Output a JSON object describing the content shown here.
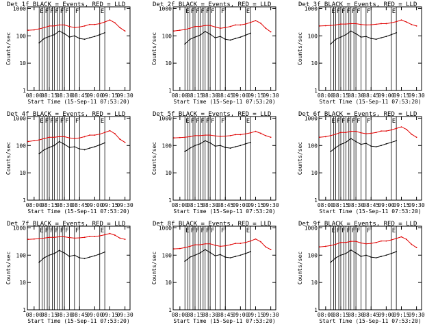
{
  "chart_data": [
    {
      "type": "line",
      "title": "Det 1f BLACK = Events, RED = LLD",
      "xlabel": "Start Time (15-Sep-11 07:53:20)",
      "ylabel": "Counts/sec",
      "x_tick_labels": [
        "08:00",
        "08:15",
        "08:30",
        "08:45",
        "09:00",
        "09:15",
        "09:30"
      ],
      "y_tick_labels": [
        "1",
        "10",
        "100",
        "1000"
      ],
      "y_scale": "log",
      "ylim": [
        1,
        1000
      ],
      "flag_letters": [
        "E",
        "F",
        "F",
        "F",
        "F",
        "F",
        "F",
        "E"
      ],
      "series": [
        {
          "name": "Events",
          "color": "#000000",
          "x": [
            "08:05",
            "08:10",
            "08:15",
            "08:20",
            "08:25",
            "08:30",
            "08:35",
            "08:40",
            "08:45",
            "08:50",
            "08:55",
            "09:00",
            "09:05",
            "09:10"
          ],
          "values": [
            55,
            80,
            95,
            110,
            150,
            120,
            90,
            100,
            80,
            75,
            85,
            95,
            110,
            130
          ]
        },
        {
          "name": "LLD",
          "color": "#e00000",
          "x": [
            "07:54",
            "08:00",
            "08:05",
            "08:10",
            "08:15",
            "08:20",
            "08:25",
            "08:30",
            "08:35",
            "08:40",
            "08:45",
            "08:50",
            "08:55",
            "09:00",
            "09:05",
            "09:10",
            "09:15",
            "09:20",
            "09:25",
            "09:30"
          ],
          "values": [
            160,
            165,
            180,
            200,
            230,
            230,
            250,
            250,
            220,
            200,
            210,
            230,
            260,
            260,
            280,
            320,
            380,
            300,
            200,
            150
          ]
        }
      ]
    },
    {
      "type": "line",
      "title": "Det 2f BLACK = Events, RED = LLD",
      "xlabel": "Start Time (15-Sep-11 07:53:20)",
      "ylabel": "Counts/sec",
      "x_tick_labels": [
        "08:00",
        "08:15",
        "08:30",
        "08:45",
        "09:00",
        "09:15",
        "09:30"
      ],
      "y_tick_labels": [
        "1",
        "10",
        "100",
        "1000"
      ],
      "y_scale": "log",
      "ylim": [
        1,
        1000
      ],
      "flag_letters": [
        "E",
        "F",
        "F",
        "F",
        "F",
        "F",
        "F",
        "E"
      ],
      "series": [
        {
          "name": "Events",
          "color": "#000000",
          "x": [
            "08:05",
            "08:10",
            "08:15",
            "08:20",
            "08:25",
            "08:30",
            "08:35",
            "08:40",
            "08:45",
            "08:50",
            "08:55",
            "09:00",
            "09:05",
            "09:10"
          ],
          "values": [
            50,
            75,
            90,
            105,
            145,
            115,
            85,
            95,
            75,
            70,
            80,
            90,
            105,
            125
          ]
        },
        {
          "name": "LLD",
          "color": "#e00000",
          "x": [
            "07:54",
            "08:00",
            "08:05",
            "08:10",
            "08:15",
            "08:20",
            "08:25",
            "08:30",
            "08:35",
            "08:40",
            "08:45",
            "08:50",
            "08:55",
            "09:00",
            "09:05",
            "09:10",
            "09:15",
            "09:20",
            "09:25",
            "09:30"
          ],
          "values": [
            150,
            160,
            170,
            190,
            220,
            220,
            240,
            240,
            210,
            190,
            200,
            220,
            250,
            250,
            270,
            310,
            360,
            290,
            190,
            140
          ]
        }
      ]
    },
    {
      "type": "line",
      "title": "Det 3f BLACK = Events, RED = LLD",
      "xlabel": "Start Time (15-Sep-11 07:53:20)",
      "ylabel": "Counts/sec",
      "x_tick_labels": [
        "08:00",
        "08:15",
        "08:30",
        "08:45",
        "09:00",
        "09:15",
        "09:30"
      ],
      "y_tick_labels": [
        "1",
        "10",
        "100",
        "1000"
      ],
      "y_scale": "log",
      "ylim": [
        1,
        1000
      ],
      "flag_letters": [
        "E",
        "F",
        "F",
        "F",
        "F",
        "F",
        "F",
        "E"
      ],
      "series": [
        {
          "name": "Events",
          "color": "#000000",
          "x": [
            "08:05",
            "08:10",
            "08:15",
            "08:20",
            "08:25",
            "08:30",
            "08:35",
            "08:40",
            "08:45",
            "08:50",
            "08:55",
            "09:00",
            "09:05",
            "09:10"
          ],
          "values": [
            50,
            75,
            90,
            110,
            150,
            120,
            90,
            95,
            80,
            75,
            85,
            95,
            110,
            130
          ]
        },
        {
          "name": "LLD",
          "color": "#e00000",
          "x": [
            "07:54",
            "08:00",
            "08:05",
            "08:10",
            "08:15",
            "08:20",
            "08:25",
            "08:30",
            "08:35",
            "08:40",
            "08:45",
            "08:50",
            "08:55",
            "09:00",
            "09:05",
            "09:10",
            "09:15",
            "09:20",
            "09:25",
            "09:30"
          ],
          "values": [
            230,
            235,
            240,
            250,
            270,
            270,
            280,
            280,
            260,
            250,
            255,
            265,
            280,
            280,
            300,
            330,
            380,
            320,
            260,
            230
          ]
        }
      ]
    },
    {
      "type": "line",
      "title": "Det 4f BLACK = Events, RED = LLD",
      "xlabel": "Start Time (15-Sep-11 07:53:20)",
      "ylabel": "Counts/sec",
      "x_tick_labels": [
        "08:00",
        "08:15",
        "08:30",
        "08:45",
        "09:00",
        "09:15",
        "09:30"
      ],
      "y_tick_labels": [
        "1",
        "10",
        "100",
        "1000"
      ],
      "y_scale": "log",
      "ylim": [
        1,
        1000
      ],
      "flag_letters": [
        "E",
        "F",
        "F",
        "F",
        "F",
        "F",
        "F",
        "E"
      ],
      "series": [
        {
          "name": "Events",
          "color": "#000000",
          "x": [
            "08:05",
            "08:10",
            "08:15",
            "08:20",
            "08:25",
            "08:30",
            "08:35",
            "08:40",
            "08:45",
            "08:50",
            "08:55",
            "09:00",
            "09:05",
            "09:10"
          ],
          "values": [
            50,
            70,
            85,
            100,
            140,
            110,
            85,
            90,
            75,
            70,
            80,
            90,
            105,
            125
          ]
        },
        {
          "name": "LLD",
          "color": "#e00000",
          "x": [
            "07:54",
            "08:00",
            "08:05",
            "08:10",
            "08:15",
            "08:20",
            "08:25",
            "08:30",
            "08:35",
            "08:40",
            "08:45",
            "08:50",
            "08:55",
            "09:00",
            "09:05",
            "09:10",
            "09:15",
            "09:20",
            "09:25",
            "09:30"
          ],
          "values": [
            140,
            150,
            160,
            180,
            200,
            200,
            210,
            210,
            190,
            180,
            190,
            210,
            240,
            240,
            260,
            300,
            350,
            270,
            170,
            130
          ]
        }
      ]
    },
    {
      "type": "line",
      "title": "Det 5f BLACK = Events, RED = LLD",
      "xlabel": "Start Time (15-Sep-11 07:53:20)",
      "ylabel": "Counts/sec",
      "x_tick_labels": [
        "08:00",
        "08:15",
        "08:30",
        "08:45",
        "09:00",
        "09:15",
        "09:30"
      ],
      "y_tick_labels": [
        "1",
        "10",
        "100",
        "1000"
      ],
      "y_scale": "log",
      "ylim": [
        1,
        1000
      ],
      "flag_letters": [
        "E",
        "F",
        "F",
        "F",
        "F",
        "F",
        "F",
        "E"
      ],
      "series": [
        {
          "name": "Events",
          "color": "#000000",
          "x": [
            "08:05",
            "08:10",
            "08:15",
            "08:20",
            "08:25",
            "08:30",
            "08:35",
            "08:40",
            "08:45",
            "08:50",
            "08:55",
            "09:00",
            "09:05",
            "09:10"
          ],
          "values": [
            60,
            80,
            100,
            115,
            150,
            125,
            95,
            100,
            85,
            80,
            90,
            100,
            115,
            130
          ]
        },
        {
          "name": "LLD",
          "color": "#e00000",
          "x": [
            "07:54",
            "08:00",
            "08:05",
            "08:10",
            "08:15",
            "08:20",
            "08:25",
            "08:30",
            "08:35",
            "08:40",
            "08:45",
            "08:50",
            "08:55",
            "09:00",
            "09:05",
            "09:10",
            "09:15",
            "09:20",
            "09:25",
            "09:30"
          ],
          "values": [
            190,
            195,
            200,
            210,
            230,
            230,
            240,
            240,
            225,
            215,
            220,
            230,
            250,
            250,
            265,
            290,
            330,
            280,
            230,
            200
          ]
        }
      ]
    },
    {
      "type": "line",
      "title": "Det 6f BLACK = Events, RED = LLD",
      "xlabel": "Start Time (15-Sep-11 07:53:20)",
      "ylabel": "Counts/sec",
      "x_tick_labels": [
        "08:00",
        "08:15",
        "08:30",
        "08:45",
        "09:00",
        "09:15",
        "09:30"
      ],
      "y_tick_labels": [
        "1",
        "10",
        "100",
        "1000"
      ],
      "y_scale": "log",
      "ylim": [
        1,
        1000
      ],
      "flag_letters": [
        "E",
        "F",
        "F",
        "F",
        "F",
        "F",
        "F",
        "E"
      ],
      "series": [
        {
          "name": "Events",
          "color": "#000000",
          "x": [
            "08:05",
            "08:10",
            "08:15",
            "08:20",
            "08:25",
            "08:30",
            "08:35",
            "08:40",
            "08:45",
            "08:50",
            "08:55",
            "09:00",
            "09:05",
            "09:10"
          ],
          "values": [
            60,
            85,
            110,
            130,
            180,
            140,
            110,
            120,
            95,
            90,
            100,
            115,
            130,
            150
          ]
        },
        {
          "name": "LLD",
          "color": "#e00000",
          "x": [
            "07:54",
            "08:00",
            "08:05",
            "08:10",
            "08:15",
            "08:20",
            "08:25",
            "08:30",
            "08:35",
            "08:40",
            "08:45",
            "08:50",
            "08:55",
            "09:00",
            "09:05",
            "09:10",
            "09:15",
            "09:20",
            "09:25",
            "09:30"
          ],
          "values": [
            200,
            210,
            230,
            260,
            300,
            300,
            330,
            330,
            290,
            270,
            280,
            300,
            340,
            340,
            370,
            420,
            480,
            390,
            260,
            200
          ]
        }
      ]
    },
    {
      "type": "line",
      "title": "Det 7f BLACK = Events, RED = LLD",
      "xlabel": "Start Time (15-Sep-11 07:53:20)",
      "ylabel": "Counts/sec",
      "x_tick_labels": [
        "08:00",
        "08:15",
        "08:30",
        "08:45",
        "09:00",
        "09:15",
        "09:30"
      ],
      "y_tick_labels": [
        "1",
        "10",
        "100",
        "1000"
      ],
      "y_scale": "log",
      "ylim": [
        1,
        1000
      ],
      "flag_letters": [
        "E",
        "F",
        "F",
        "F",
        "F",
        "F",
        "F",
        "E"
      ],
      "series": [
        {
          "name": "Events",
          "color": "#000000",
          "x": [
            "08:05",
            "08:10",
            "08:15",
            "08:20",
            "08:25",
            "08:30",
            "08:35",
            "08:40",
            "08:45",
            "08:50",
            "08:55",
            "09:00",
            "09:05",
            "09:10"
          ],
          "values": [
            55,
            80,
            100,
            115,
            150,
            120,
            90,
            100,
            80,
            75,
            85,
            95,
            110,
            130
          ]
        },
        {
          "name": "LLD",
          "color": "#e00000",
          "x": [
            "07:54",
            "08:00",
            "08:05",
            "08:10",
            "08:15",
            "08:20",
            "08:25",
            "08:30",
            "08:35",
            "08:40",
            "08:45",
            "08:50",
            "08:55",
            "09:00",
            "09:05",
            "09:10",
            "09:15",
            "09:20",
            "09:25",
            "09:30"
          ],
          "values": [
            380,
            390,
            400,
            420,
            450,
            450,
            470,
            470,
            440,
            420,
            430,
            450,
            480,
            480,
            510,
            560,
            620,
            540,
            420,
            380
          ]
        }
      ]
    },
    {
      "type": "line",
      "title": "Det 8f BLACK = Events, RED = LLD",
      "xlabel": "Start Time (15-Sep-11 07:53:20)",
      "ylabel": "Counts/sec",
      "x_tick_labels": [
        "08:00",
        "08:15",
        "08:30",
        "08:45",
        "09:00",
        "09:15",
        "09:30"
      ],
      "y_tick_labels": [
        "1",
        "10",
        "100",
        "1000"
      ],
      "y_scale": "log",
      "ylim": [
        1,
        1000
      ],
      "flag_letters": [
        "E",
        "F",
        "F",
        "F",
        "F",
        "F",
        "F",
        "E"
      ],
      "series": [
        {
          "name": "Events",
          "color": "#000000",
          "x": [
            "08:05",
            "08:10",
            "08:15",
            "08:20",
            "08:25",
            "08:30",
            "08:35",
            "08:40",
            "08:45",
            "08:50",
            "08:55",
            "09:00",
            "09:05",
            "09:10"
          ],
          "values": [
            60,
            85,
            100,
            120,
            160,
            125,
            95,
            105,
            85,
            80,
            90,
            100,
            115,
            135
          ]
        },
        {
          "name": "LLD",
          "color": "#e00000",
          "x": [
            "07:54",
            "08:00",
            "08:05",
            "08:10",
            "08:15",
            "08:20",
            "08:25",
            "08:30",
            "08:35",
            "08:40",
            "08:45",
            "08:50",
            "08:55",
            "09:00",
            "09:05",
            "09:10",
            "09:15",
            "09:20",
            "09:25",
            "09:30"
          ],
          "values": [
            170,
            175,
            190,
            210,
            240,
            240,
            260,
            260,
            230,
            210,
            220,
            240,
            270,
            270,
            290,
            330,
            390,
            310,
            200,
            160
          ]
        }
      ]
    },
    {
      "type": "line",
      "title": "Det 9f BLACK = Events, RED = LLD",
      "xlabel": "Start Time (15-Sep-11 07:53:20)",
      "ylabel": "Counts/sec",
      "x_tick_labels": [
        "08:00",
        "08:15",
        "08:30",
        "08:45",
        "09:00",
        "09:15",
        "09:30"
      ],
      "y_tick_labels": [
        "1",
        "10",
        "100",
        "1000"
      ],
      "y_scale": "log",
      "ylim": [
        1,
        1000
      ],
      "flag_letters": [
        "E",
        "F",
        "F",
        "F",
        "F",
        "F",
        "F",
        "E"
      ],
      "series": [
        {
          "name": "Events",
          "color": "#000000",
          "x": [
            "08:05",
            "08:10",
            "08:15",
            "08:20",
            "08:25",
            "08:30",
            "08:35",
            "08:40",
            "08:45",
            "08:50",
            "08:55",
            "09:00",
            "09:05",
            "09:10"
          ],
          "values": [
            55,
            80,
            100,
            115,
            155,
            120,
            90,
            100,
            85,
            80,
            90,
            100,
            115,
            135
          ]
        },
        {
          "name": "LLD",
          "color": "#e00000",
          "x": [
            "07:54",
            "08:00",
            "08:05",
            "08:10",
            "08:15",
            "08:20",
            "08:25",
            "08:30",
            "08:35",
            "08:40",
            "08:45",
            "08:50",
            "08:55",
            "09:00",
            "09:05",
            "09:10",
            "09:15",
            "09:20",
            "09:25",
            "09:30"
          ],
          "values": [
            200,
            210,
            225,
            250,
            290,
            290,
            320,
            320,
            280,
            260,
            270,
            290,
            330,
            330,
            360,
            410,
            470,
            380,
            250,
            190
          ]
        }
      ]
    }
  ]
}
